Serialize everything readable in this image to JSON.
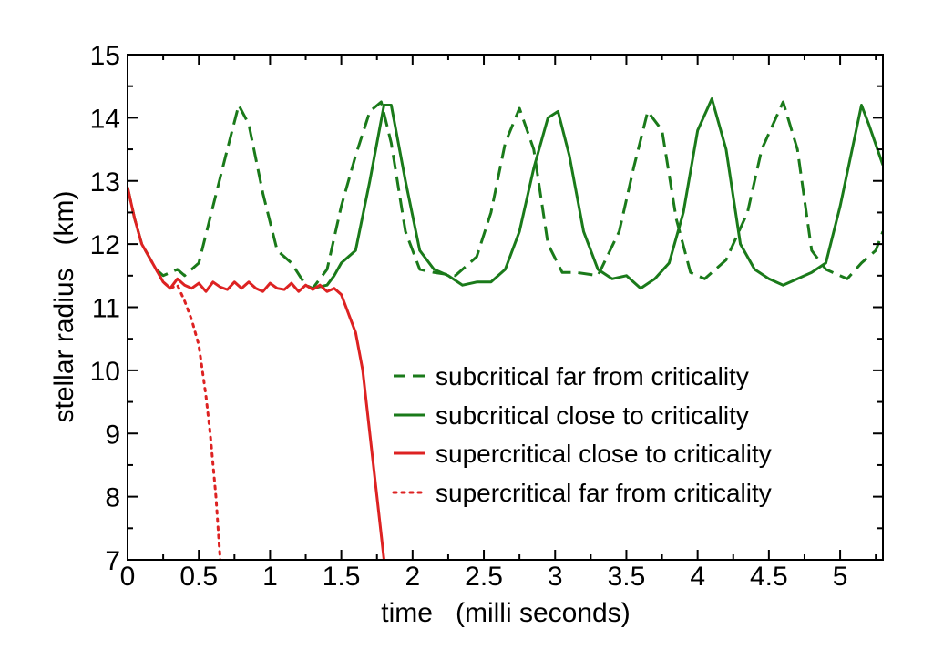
{
  "chart_data": {
    "type": "line",
    "title": "",
    "xlabel": "time   (milli seconds)",
    "ylabel": "stellar radius   (km)",
    "xlim": [
      0,
      5.3
    ],
    "ylim": [
      7,
      15
    ],
    "xticks": [
      0,
      0.5,
      1,
      1.5,
      2,
      2.5,
      3,
      3.5,
      4,
      4.5,
      5
    ],
    "xtick_labels": [
      "0",
      "0.5",
      "1",
      "1.5",
      "2",
      "2.5",
      "3",
      "3.5",
      "4",
      "4.5",
      "5"
    ],
    "yticks": [
      7,
      8,
      9,
      10,
      11,
      12,
      13,
      14,
      15
    ],
    "ytick_labels": [
      "7",
      "8",
      "9",
      "10",
      "11",
      "12",
      "13",
      "14",
      "15"
    ],
    "grid": false,
    "legend_position": "center-right",
    "series": [
      {
        "name": "subcritical far from criticality",
        "color": "#1a7a1a",
        "style": "dashed",
        "x": [
          0,
          0.05,
          0.1,
          0.15,
          0.2,
          0.25,
          0.3,
          0.35,
          0.4,
          0.5,
          0.6,
          0.7,
          0.78,
          0.85,
          0.95,
          1.05,
          1.15,
          1.25,
          1.3,
          1.4,
          1.5,
          1.6,
          1.7,
          1.78,
          1.85,
          1.95,
          2.05,
          2.15,
          2.3,
          2.45,
          2.55,
          2.65,
          2.75,
          2.85,
          2.95,
          3.05,
          3.15,
          3.3,
          3.45,
          3.55,
          3.65,
          3.75,
          3.85,
          3.95,
          4.05,
          4.2,
          4.35,
          4.45,
          4.6,
          4.7,
          4.8,
          4.9,
          5.05,
          5.15,
          5.25,
          5.3
        ],
        "values": [
          12.9,
          12.4,
          12.0,
          11.8,
          11.6,
          11.5,
          11.55,
          11.6,
          11.5,
          11.7,
          12.6,
          13.5,
          14.2,
          13.9,
          12.8,
          11.9,
          11.7,
          11.35,
          11.3,
          11.6,
          12.6,
          13.4,
          14.1,
          14.25,
          13.6,
          12.2,
          11.6,
          11.55,
          11.5,
          11.8,
          12.5,
          13.6,
          14.15,
          13.5,
          12.0,
          11.55,
          11.55,
          11.5,
          12.2,
          13.2,
          14.1,
          13.8,
          12.4,
          11.55,
          11.45,
          11.75,
          12.5,
          13.5,
          14.25,
          13.5,
          11.9,
          11.6,
          11.45,
          11.7,
          11.9,
          12.2
        ]
      },
      {
        "name": "subcritical close to criticality",
        "color": "#1a7a1a",
        "style": "solid",
        "x": [
          1.3,
          1.4,
          1.45,
          1.5,
          1.6,
          1.7,
          1.8,
          1.85,
          1.95,
          2.05,
          2.15,
          2.25,
          2.35,
          2.45,
          2.55,
          2.65,
          2.75,
          2.85,
          2.95,
          3.02,
          3.1,
          3.2,
          3.3,
          3.4,
          3.5,
          3.6,
          3.7,
          3.8,
          3.9,
          4.0,
          4.1,
          4.2,
          4.3,
          4.4,
          4.5,
          4.6,
          4.7,
          4.8,
          4.9,
          5.0,
          5.15,
          5.2,
          5.3
        ],
        "values": [
          11.3,
          11.35,
          11.5,
          11.7,
          11.9,
          13.0,
          14.2,
          14.2,
          13.0,
          11.9,
          11.6,
          11.5,
          11.35,
          11.4,
          11.4,
          11.6,
          12.2,
          13.2,
          14.0,
          14.1,
          13.4,
          12.2,
          11.6,
          11.45,
          11.5,
          11.3,
          11.45,
          11.7,
          12.5,
          13.8,
          14.3,
          13.5,
          12.0,
          11.6,
          11.45,
          11.35,
          11.45,
          11.55,
          11.7,
          12.6,
          14.2,
          13.9,
          13.25
        ]
      },
      {
        "name": "supercritical close to criticality",
        "color": "#dd2222",
        "style": "solid",
        "x": [
          0,
          0.05,
          0.1,
          0.15,
          0.2,
          0.25,
          0.3,
          0.35,
          0.4,
          0.45,
          0.5,
          0.55,
          0.6,
          0.65,
          0.7,
          0.75,
          0.8,
          0.85,
          0.9,
          0.95,
          1.0,
          1.05,
          1.1,
          1.15,
          1.2,
          1.25,
          1.3,
          1.35,
          1.4,
          1.45,
          1.5,
          1.55,
          1.6,
          1.65,
          1.7,
          1.75,
          1.8
        ],
        "values": [
          12.9,
          12.4,
          12.0,
          11.8,
          11.6,
          11.4,
          11.3,
          11.45,
          11.35,
          11.3,
          11.38,
          11.25,
          11.4,
          11.32,
          11.28,
          11.4,
          11.3,
          11.4,
          11.3,
          11.25,
          11.38,
          11.3,
          11.28,
          11.38,
          11.25,
          11.35,
          11.28,
          11.35,
          11.25,
          11.3,
          11.2,
          10.9,
          10.6,
          10.0,
          9.0,
          8.0,
          7.0
        ]
      },
      {
        "name": "supercritical far from criticality",
        "color": "#dd2222",
        "style": "dotted",
        "x": [
          0.2,
          0.25,
          0.3,
          0.35,
          0.4,
          0.45,
          0.5,
          0.55,
          0.58,
          0.62,
          0.65
        ],
        "values": [
          11.6,
          11.4,
          11.3,
          11.35,
          11.1,
          10.8,
          10.4,
          9.6,
          9.0,
          8.0,
          7.0
        ]
      }
    ]
  }
}
